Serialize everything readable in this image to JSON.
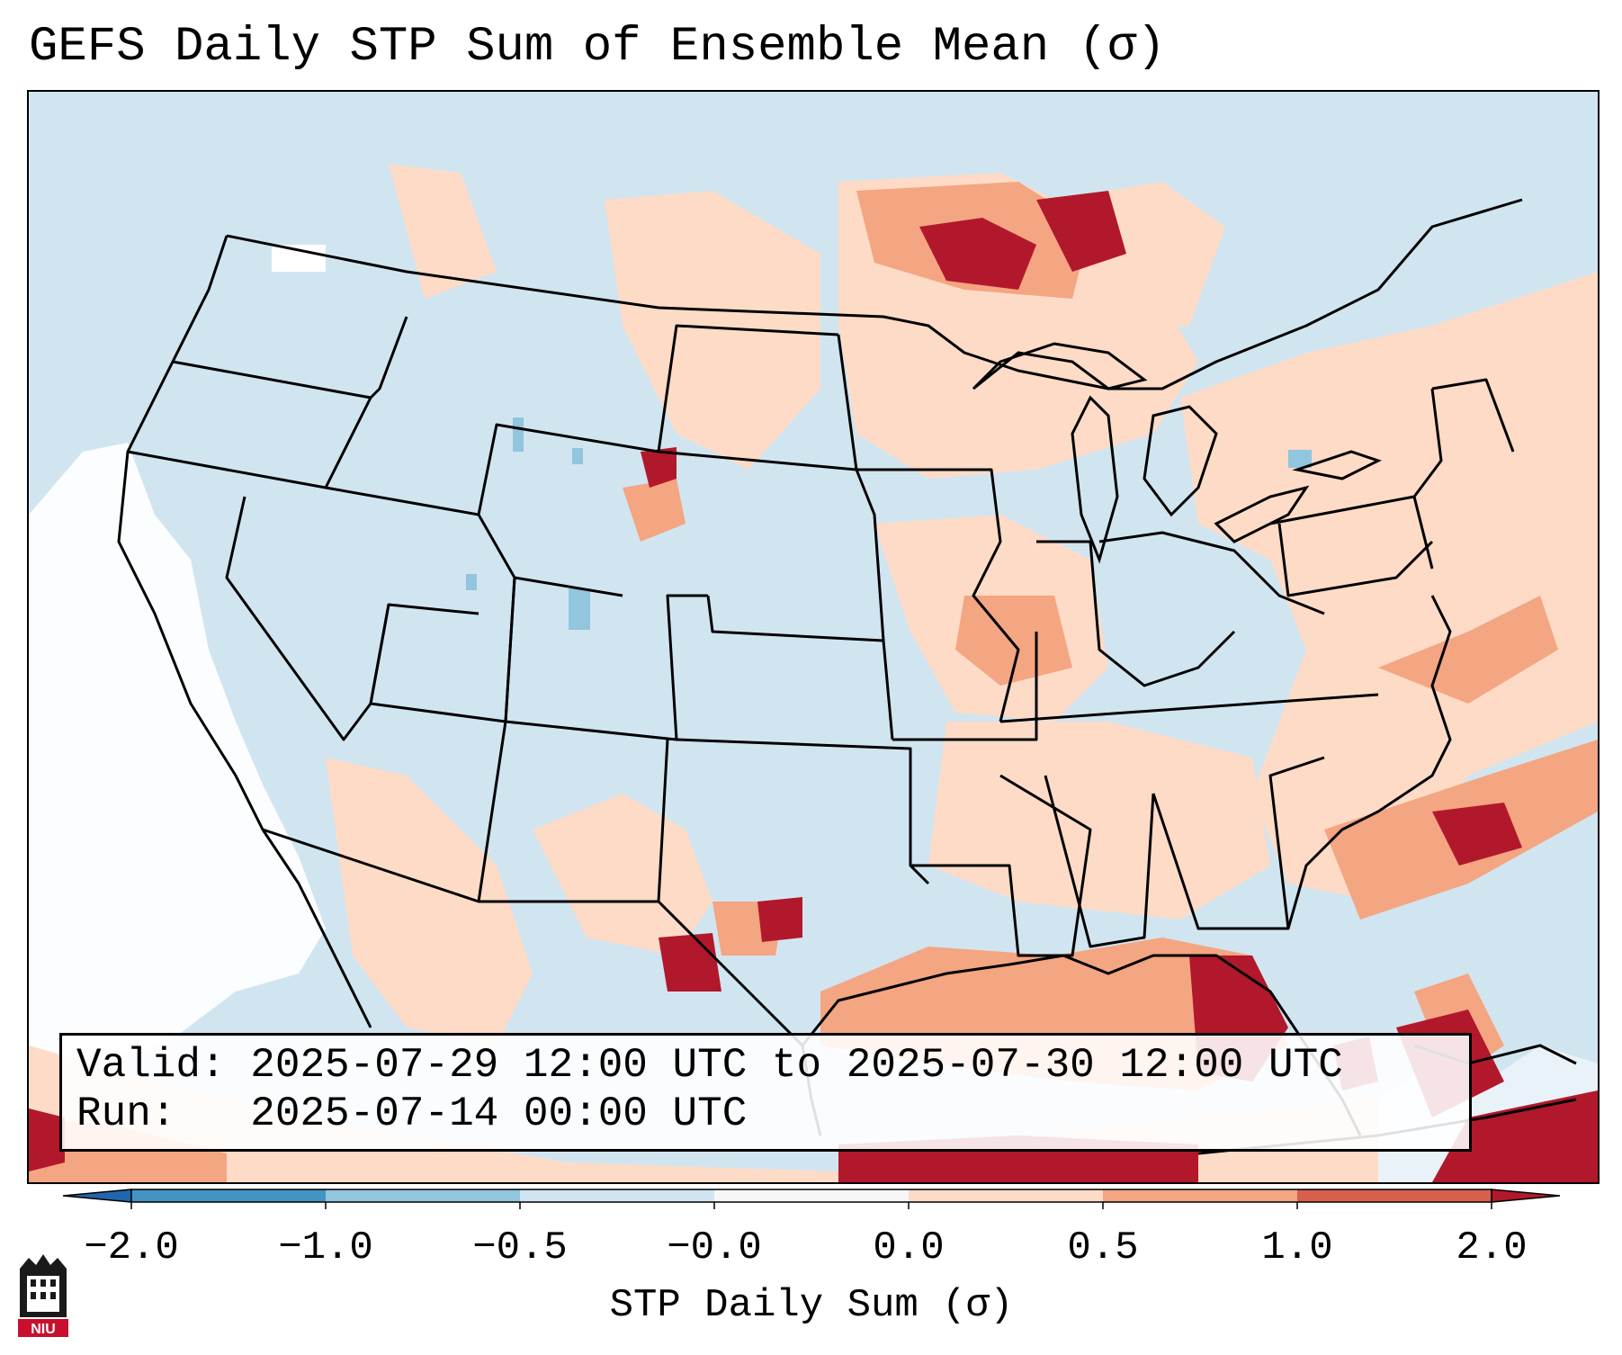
{
  "title": "GEFS Daily STP Sum of Ensemble Mean (σ)",
  "info": {
    "valid_line": "Valid: 2025-07-29 12:00 UTC to 2025-07-30 12:00 UTC",
    "run_line": "Run:   2025-07-14 00:00 UTC"
  },
  "colorbar": {
    "label": "STP Daily Sum (σ)",
    "ticks": [
      "−2.0",
      "−1.0",
      "−0.5",
      "−0.0",
      "0.0",
      "0.5",
      "1.0",
      "2.0"
    ],
    "colors": [
      "#4393c3",
      "#92c5de",
      "#d1e5f0",
      "#f7f7f7",
      "#fddbc7",
      "#f4a582",
      "#d6604d",
      "#b2182b"
    ],
    "under_color": "#2166ac",
    "over_color": "#b2182b"
  },
  "map": {
    "background_color": "#d1e5f0",
    "regions": [
      {
        "name": "pacific-low-area",
        "category": "neutral"
      },
      {
        "name": "northern-plains-canada-high",
        "category": "high"
      },
      {
        "name": "mississippi-valley-elevated",
        "category": "moderate"
      },
      {
        "name": "northeast-elevated",
        "category": "low"
      },
      {
        "name": "gulf-of-mexico-high",
        "category": "very-high"
      },
      {
        "name": "atlantic-elevated",
        "category": "moderate"
      },
      {
        "name": "mexico-scattered",
        "category": "moderate"
      }
    ]
  },
  "logo": {
    "text": "NIU"
  }
}
